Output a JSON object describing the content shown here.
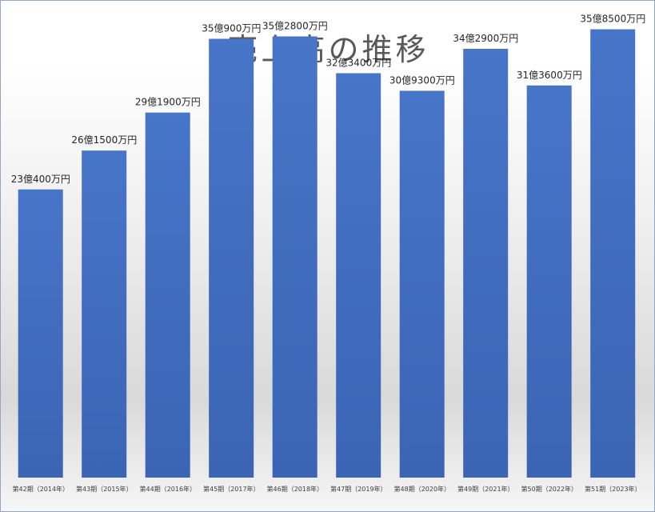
{
  "chart_data": {
    "type": "bar",
    "title": "売上高の推移",
    "categories": [
      "第42期（2014年）",
      "第43期（2015年）",
      "第44期（2016年）",
      "第45期（2017年）",
      "第46期（2018年）",
      "第47期（2019年）",
      "第48期（2020年）",
      "第49期（2021年）",
      "第50期（2022年）",
      "第51期（2023年）"
    ],
    "values": [
      230400,
      261500,
      291900,
      350900,
      352800,
      323400,
      309300,
      342900,
      313600,
      358500
    ],
    "value_unit": "万円",
    "data_labels": [
      "23億400万円",
      "26億1500万円",
      "29億1900万円",
      "35億900万円",
      "35億2800万円",
      "32億3400万円",
      "30億9300万円",
      "34億2900万円",
      "31億3600万円",
      "35億8500万円"
    ],
    "ylim": [
      0,
      380000
    ],
    "bar_color": "#4472c4",
    "grid": false,
    "legend": false
  }
}
